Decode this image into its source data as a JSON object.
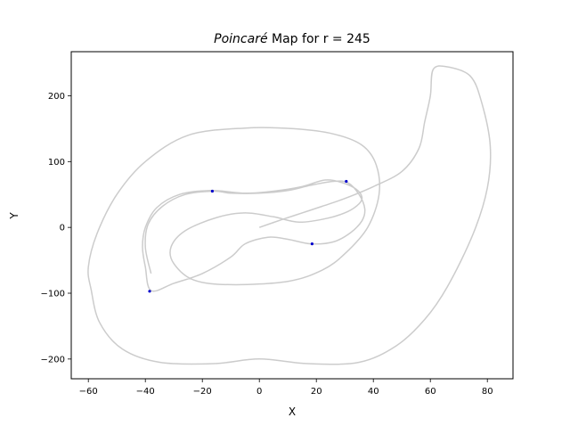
{
  "chart_data": {
    "type": "scatter",
    "title_italic": "Poincaré",
    "title_rest": " Map for r = 245",
    "xlabel": "X",
    "ylabel": "Y",
    "xlim": [
      -66,
      89
    ],
    "ylim": [
      -230,
      267
    ],
    "xticks": [
      -60,
      -40,
      -20,
      0,
      20,
      40,
      60,
      80
    ],
    "yticks": [
      -200,
      -100,
      0,
      100,
      200
    ],
    "xtick_labels": [
      "−60",
      "−40",
      "−20",
      "0",
      "20",
      "40",
      "60",
      "80"
    ],
    "ytick_labels": [
      "−200",
      "−100",
      "0",
      "100",
      "200"
    ],
    "grid": false,
    "colors": {
      "trajectory": "#cccccc",
      "points": "#0000cc"
    },
    "series": [
      {
        "kind": "trajectory",
        "points": [
          [
            0,
            0
          ],
          [
            8,
            12
          ],
          [
            15,
            22
          ],
          [
            22,
            32
          ],
          [
            30,
            44
          ],
          [
            40,
            62
          ],
          [
            50,
            85
          ],
          [
            56,
            120
          ],
          [
            58,
            160
          ],
          [
            60,
            200
          ],
          [
            61,
            240
          ],
          [
            66,
            244
          ],
          [
            74,
            230
          ],
          [
            78,
            190
          ],
          [
            81,
            125
          ],
          [
            80,
            60
          ],
          [
            75,
            -10
          ],
          [
            66,
            -90
          ],
          [
            58,
            -140
          ],
          [
            48,
            -180
          ],
          [
            35,
            -205
          ],
          [
            17,
            -207
          ],
          [
            0,
            -200
          ],
          [
            -16,
            -207
          ],
          [
            -35,
            -205
          ],
          [
            -48,
            -185
          ],
          [
            -56,
            -145
          ],
          [
            -59,
            -95
          ],
          [
            -60,
            -60
          ],
          [
            -57,
            -10
          ],
          [
            -50,
            50
          ],
          [
            -40,
            100
          ],
          [
            -25,
            140
          ],
          [
            -5,
            151
          ],
          [
            12,
            150
          ],
          [
            26,
            142
          ],
          [
            36,
            125
          ],
          [
            41,
            95
          ],
          [
            42,
            50
          ],
          [
            38,
            0
          ],
          [
            30,
            -40
          ],
          [
            22,
            -65
          ],
          [
            10,
            -82
          ],
          [
            -10,
            -87
          ],
          [
            -23,
            -80
          ],
          [
            -30,
            -55
          ],
          [
            -31,
            -30
          ],
          [
            -26,
            -5
          ],
          [
            -15,
            15
          ],
          [
            -5,
            22
          ],
          [
            5,
            16
          ],
          [
            14,
            8
          ],
          [
            24,
            14
          ],
          [
            31,
            24
          ],
          [
            35,
            36
          ],
          [
            36,
            46
          ],
          [
            34,
            58
          ],
          [
            29,
            68
          ],
          [
            23,
            72
          ],
          [
            15,
            62
          ],
          [
            5,
            55
          ],
          [
            -5,
            52
          ],
          [
            -17,
            56
          ],
          [
            -28,
            50
          ],
          [
            -36,
            30
          ],
          [
            -40,
            0
          ],
          [
            -41,
            -30
          ],
          [
            -40,
            -60
          ],
          [
            -38,
            -96
          ],
          [
            -30,
            -85
          ],
          [
            -20,
            -70
          ],
          [
            -10,
            -45
          ],
          [
            -5,
            -25
          ],
          [
            3,
            -15
          ],
          [
            10,
            -18
          ],
          [
            18,
            -25
          ],
          [
            26,
            -22
          ],
          [
            32,
            -8
          ],
          [
            36,
            10
          ],
          [
            37,
            28
          ],
          [
            35,
            50
          ],
          [
            31,
            68
          ],
          [
            26,
            70
          ],
          [
            18,
            64
          ],
          [
            10,
            56
          ],
          [
            0,
            52
          ],
          [
            -10,
            52
          ],
          [
            -16,
            55
          ],
          [
            -26,
            50
          ],
          [
            -34,
            32
          ],
          [
            -39,
            5
          ],
          [
            -40,
            -30
          ],
          [
            -38,
            -70
          ]
        ]
      },
      {
        "kind": "section_points",
        "points": [
          [
            -16.5,
            55
          ],
          [
            30.5,
            70
          ],
          [
            -38.5,
            -97
          ],
          [
            18.5,
            -25
          ]
        ]
      }
    ]
  }
}
